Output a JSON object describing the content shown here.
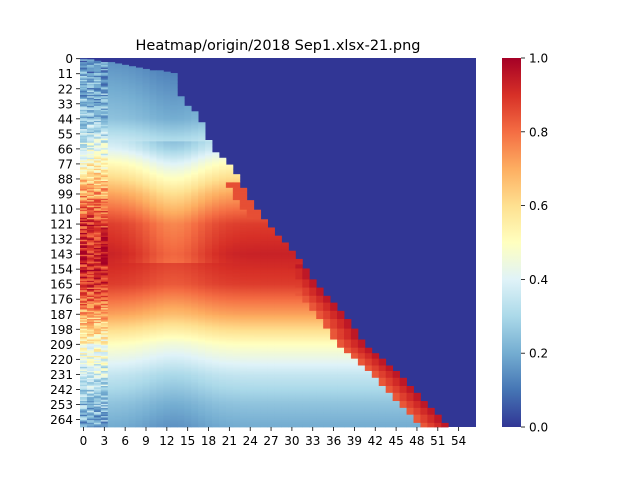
{
  "chart_data": {
    "type": "heatmap",
    "title": "Heatmap/origin/2018 Sep1.xlsx-21.png",
    "xlabel": "",
    "ylabel": "",
    "n_rows": 270,
    "n_cols": 57,
    "x_tick_labels": [
      "0",
      "3",
      "6",
      "9",
      "12",
      "15",
      "18",
      "21",
      "24",
      "27",
      "30",
      "33",
      "36",
      "39",
      "42",
      "45",
      "48",
      "51",
      "54"
    ],
    "y_tick_labels": [
      "0",
      "11",
      "22",
      "33",
      "44",
      "55",
      "66",
      "77",
      "88",
      "99",
      "110",
      "121",
      "132",
      "143",
      "154",
      "165",
      "176",
      "187",
      "198",
      "209",
      "220",
      "231",
      "242",
      "253",
      "264"
    ],
    "colorbar": {
      "colormap": "RdYlBu_r",
      "vmin": 0.0,
      "vmax": 1.0,
      "tick_labels": [
        "0.0",
        "0.2",
        "0.4",
        "0.6",
        "0.8",
        "1.0"
      ]
    },
    "pattern": {
      "description": "Values fill a lower-left triangle; cells above the diagonal (col > rows/5.16 approx.) are 0. Low values (0.1-0.35) at top rows, rising through yellow near row 80 to a red peak (0.85-0.95) around rows 115-165, then cooling back to blue (0.2-0.3) by row 264; right edge of triangle shows a red band.",
      "row_profile": [
        [
          0,
          0.15
        ],
        [
          44,
          0.25
        ],
        [
          66,
          0.4
        ],
        [
          77,
          0.52
        ],
        [
          99,
          0.72
        ],
        [
          121,
          0.88
        ],
        [
          143,
          0.93
        ],
        [
          165,
          0.88
        ],
        [
          187,
          0.72
        ],
        [
          209,
          0.5
        ],
        [
          231,
          0.35
        ],
        [
          253,
          0.25
        ],
        [
          269,
          0.2
        ]
      ],
      "edge_rows": [
        [
          0,
          0
        ],
        [
          11,
          13
        ],
        [
          22,
          13
        ],
        [
          33,
          14
        ],
        [
          40,
          16
        ],
        [
          66,
          18
        ],
        [
          80,
          21
        ],
        [
          100,
          23
        ],
        [
          121,
          26
        ],
        [
          143,
          30
        ],
        [
          165,
          33
        ],
        [
          187,
          37
        ],
        [
          209,
          40
        ],
        [
          231,
          45
        ],
        [
          253,
          49
        ],
        [
          269,
          52
        ]
      ]
    }
  }
}
